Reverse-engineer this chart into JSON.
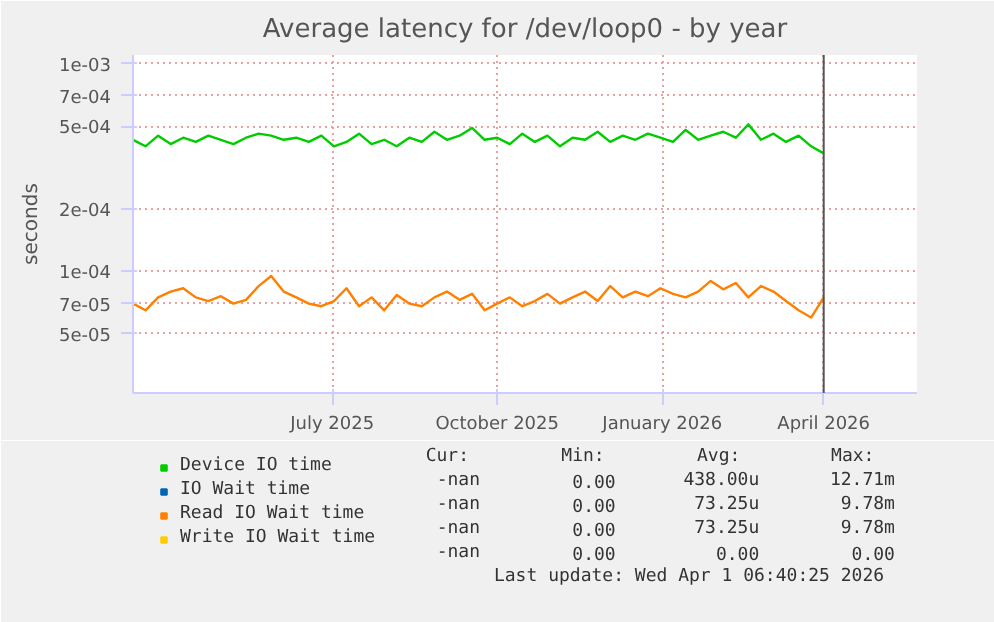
{
  "chart_data": {
    "type": "line",
    "title": "Average latency for /dev/loop0 - by year",
    "ylabel": "seconds",
    "x": [
      "2025-03-12",
      "2025-03-19",
      "2025-03-26",
      "2025-04-02",
      "2025-04-09",
      "2025-04-16",
      "2025-04-23",
      "2025-04-30",
      "2025-05-07",
      "2025-05-14",
      "2025-05-21",
      "2025-05-28",
      "2025-06-04",
      "2025-06-11",
      "2025-06-18",
      "2025-06-25",
      "2025-07-02",
      "2025-07-09",
      "2025-07-16",
      "2025-07-23",
      "2025-07-30",
      "2025-08-06",
      "2025-08-13",
      "2025-08-20",
      "2025-08-27",
      "2025-09-03",
      "2025-09-10",
      "2025-09-17",
      "2025-09-24",
      "2025-10-01",
      "2025-10-08",
      "2025-10-15",
      "2025-10-22",
      "2025-10-29",
      "2025-11-05",
      "2025-11-12",
      "2025-11-19",
      "2025-11-26",
      "2025-12-03",
      "2025-12-10",
      "2025-12-17",
      "2025-12-24",
      "2025-12-31",
      "2026-01-07",
      "2026-01-14",
      "2026-01-21",
      "2026-01-28",
      "2026-02-04",
      "2026-02-11",
      "2026-02-18",
      "2026-02-25",
      "2026-03-04",
      "2026-03-11",
      "2026-03-18",
      "2026-03-25",
      "2026-04-01"
    ],
    "series": [
      {
        "name": "Device IO time",
        "color": "#00cc00",
        "values": [
          0.00043,
          0.0004,
          0.00045,
          0.00041,
          0.00044,
          0.00042,
          0.00045,
          0.00043,
          0.00041,
          0.00044,
          0.00046,
          0.00045,
          0.00043,
          0.00044,
          0.00042,
          0.00045,
          0.0004,
          0.00042,
          0.00046,
          0.00041,
          0.00043,
          0.0004,
          0.00044,
          0.00042,
          0.00047,
          0.00043,
          0.00045,
          0.00049,
          0.00043,
          0.00044,
          0.00041,
          0.00046,
          0.00042,
          0.00045,
          0.0004,
          0.00044,
          0.00043,
          0.00047,
          0.00042,
          0.00045,
          0.00043,
          0.00046,
          0.00044,
          0.00042,
          0.00048,
          0.00043,
          0.00045,
          0.00047,
          0.00044,
          0.00051,
          0.00043,
          0.00046,
          0.00042,
          0.00045,
          0.0004,
          0.00037
        ]
      },
      {
        "name": "IO Wait time",
        "color": "#0066b3",
        "values": [
          null,
          null,
          null,
          null,
          null,
          null,
          null,
          null,
          null,
          null,
          null,
          null,
          null,
          null,
          null,
          null,
          null,
          null,
          null,
          null,
          null,
          null,
          null,
          null,
          null,
          null,
          null,
          null,
          null,
          null,
          null,
          null,
          null,
          null,
          null,
          null,
          null,
          null,
          null,
          null,
          null,
          null,
          null,
          null,
          null,
          null,
          null,
          null,
          null,
          null,
          null,
          null,
          null,
          null,
          null,
          null
        ]
      },
      {
        "name": "Read IO Wait time",
        "color": "#ff8000",
        "values": [
          7e-05,
          6.5e-05,
          7.5e-05,
          8e-05,
          8.3e-05,
          7.5e-05,
          7.2e-05,
          7.6e-05,
          7e-05,
          7.3e-05,
          8.5e-05,
          9.5e-05,
          8e-05,
          7.5e-05,
          7e-05,
          6.8e-05,
          7.2e-05,
          8.3e-05,
          6.8e-05,
          7.5e-05,
          6.5e-05,
          7.7e-05,
          7e-05,
          6.8e-05,
          7.5e-05,
          8e-05,
          7.3e-05,
          7.8e-05,
          6.5e-05,
          7e-05,
          7.5e-05,
          6.8e-05,
          7.2e-05,
          7.8e-05,
          7e-05,
          7.5e-05,
          8e-05,
          7.2e-05,
          8.5e-05,
          7.5e-05,
          8e-05,
          7.6e-05,
          8.3e-05,
          7.8e-05,
          7.5e-05,
          8e-05,
          9e-05,
          8.2e-05,
          8.8e-05,
          7.5e-05,
          8.5e-05,
          8e-05,
          7.2e-05,
          6.5e-05,
          6e-05,
          7.5e-05
        ]
      },
      {
        "name": "Write IO Wait time",
        "color": "#ffcc00",
        "values": [
          null,
          null,
          null,
          null,
          null,
          null,
          null,
          null,
          null,
          null,
          null,
          null,
          null,
          null,
          null,
          null,
          null,
          null,
          null,
          null,
          null,
          null,
          null,
          null,
          null,
          null,
          null,
          null,
          null,
          null,
          null,
          null,
          null,
          null,
          null,
          null,
          null,
          null,
          null,
          null,
          null,
          null,
          null,
          null,
          null,
          null,
          null,
          null,
          null,
          null,
          null,
          null,
          null,
          null,
          null,
          null
        ]
      }
    ],
    "log": "y",
    "xlim": [
      "2025-03-12",
      "2026-05-23"
    ],
    "xticks": [
      {
        "value": "2025-07-01",
        "label": "July 2025"
      },
      {
        "value": "2025-10-01",
        "label": "October 2025"
      },
      {
        "value": "2026-01-01",
        "label": "January 2026"
      },
      {
        "value": "2026-04-01",
        "label": "April 2026"
      }
    ],
    "ylim": [
      2.6e-05,
      0.0011
    ],
    "yticks": [
      {
        "value": 5e-05,
        "label": "5e-05"
      },
      {
        "value": 7e-05,
        "label": "7e-05"
      },
      {
        "value": 0.0001,
        "label": "1e-04"
      },
      {
        "value": 0.0002,
        "label": "2e-04"
      },
      {
        "value": 0.0005,
        "label": "5e-04"
      },
      {
        "value": 0.0007,
        "label": "7e-04"
      },
      {
        "value": 0.001,
        "label": "1e-03"
      }
    ],
    "ref_lines": [
      {
        "axis": "x",
        "value": "2026-04-01",
        "color": "#555555"
      }
    ],
    "grid": true,
    "legend": "bottom",
    "marker": "none",
    "line_style": "solid",
    "annotations": [
      "Cur:",
      "Min:",
      "Avg:",
      "Max:",
      "-nan",
      "0.00",
      "438.00u",
      "12.71m",
      "-nan",
      "0.00",
      "73.25u",
      "9.78m",
      "-nan",
      "0.00",
      "73.25u",
      "9.78m",
      "-nan",
      "0.00",
      "0.00",
      "0.00",
      "Last update: Wed Apr  1 06:40:25 2026"
    ]
  }
}
